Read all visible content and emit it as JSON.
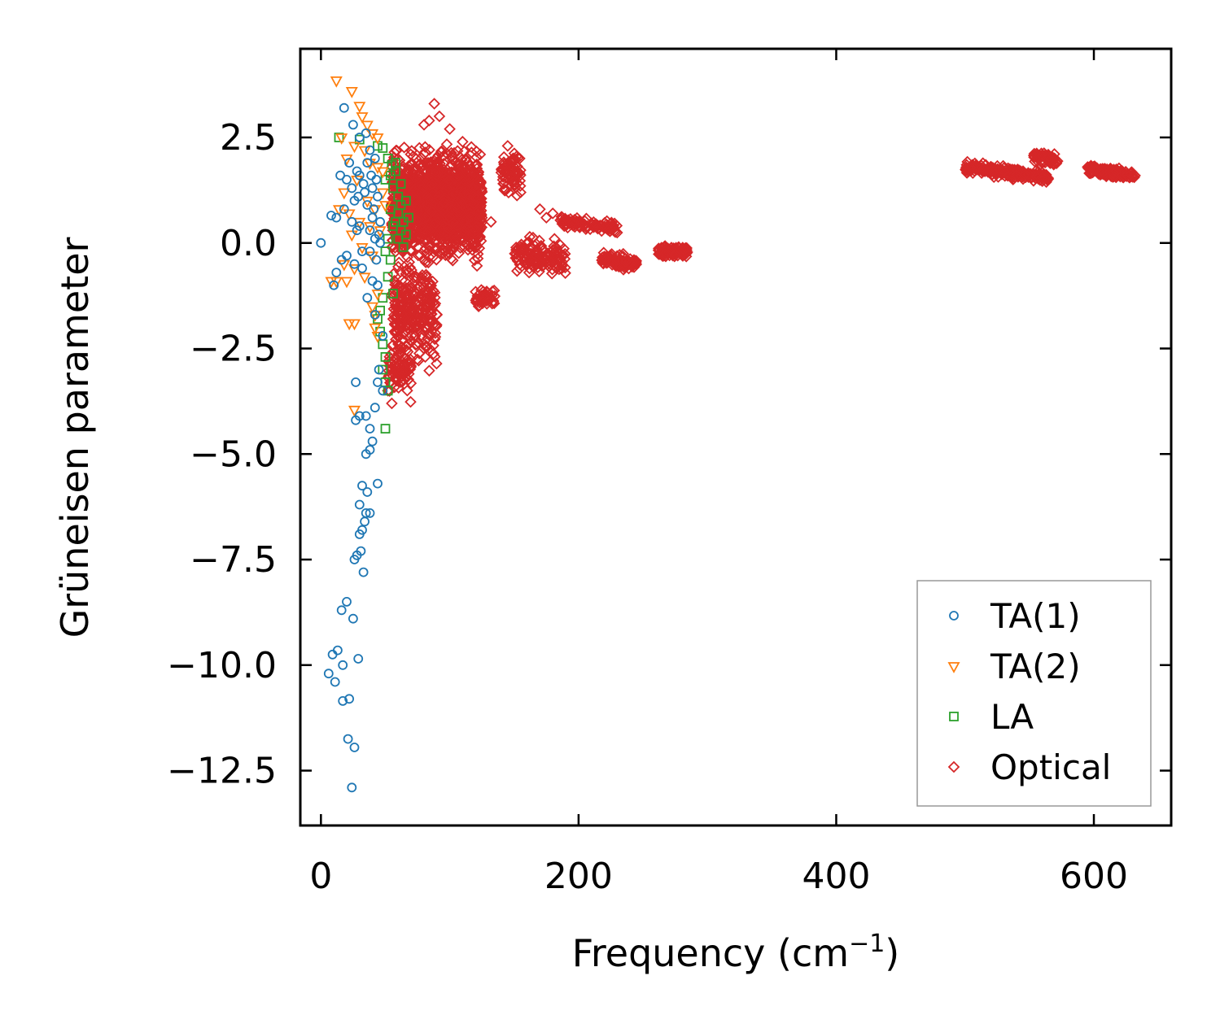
{
  "chart_data": {
    "type": "scatter",
    "xlabel": "Frequency (cm",
    "xlabel_superscript": "−1",
    "xlabel_suffix": ")",
    "ylabel": "Grüneisen parameter",
    "xlim": [
      -16,
      660
    ],
    "ylim": [
      -13.8,
      4.6
    ],
    "xticks": [
      0,
      200,
      400,
      600
    ],
    "xtick_labels": [
      "0",
      "200",
      "400",
      "600"
    ],
    "yticks": [
      2.5,
      0.0,
      -2.5,
      -5.0,
      -7.5,
      -10.0,
      -12.5
    ],
    "ytick_labels": [
      "2.5",
      "0.0",
      "−2.5",
      "−5.0",
      "−7.5",
      "−10.0",
      "−12.5"
    ],
    "legend_position": "lower-right",
    "grid": false,
    "colors": {
      "ta1": "#1f77b4",
      "ta2": "#ff7f0e",
      "la": "#2ca02c",
      "optical": "#d62728"
    },
    "series": [
      {
        "name": "TA(1)",
        "marker": "circle",
        "color": "#1f77b4",
        "points": [
          [
            18,
            3.2
          ],
          [
            25,
            2.8
          ],
          [
            30,
            2.5
          ],
          [
            35,
            2.6
          ],
          [
            38,
            2.2
          ],
          [
            42,
            2.0
          ],
          [
            22,
            1.9
          ],
          [
            28,
            1.7
          ],
          [
            15,
            1.6
          ],
          [
            20,
            1.5
          ],
          [
            33,
            1.4
          ],
          [
            40,
            1.3
          ],
          [
            44,
            1.1
          ],
          [
            26,
            1.0
          ],
          [
            36,
            0.9
          ],
          [
            18,
            0.8
          ],
          [
            8,
            0.65
          ],
          [
            12,
            0.6
          ],
          [
            24,
            0.5
          ],
          [
            30,
            0.4
          ],
          [
            38,
            0.3
          ],
          [
            42,
            0.1
          ],
          [
            46,
            0.0
          ],
          [
            20,
            -0.3
          ],
          [
            16,
            -0.4
          ],
          [
            26,
            -0.5
          ],
          [
            12,
            -0.7
          ],
          [
            32,
            -0.6
          ],
          [
            40,
            -0.9
          ],
          [
            44,
            -1.0
          ],
          [
            10,
            -1.0
          ],
          [
            36,
            -1.3
          ],
          [
            42,
            -1.7
          ],
          [
            48,
            -2.2
          ],
          [
            45,
            -3.0
          ],
          [
            44,
            -3.3
          ],
          [
            27,
            -3.3
          ],
          [
            48,
            -3.5
          ],
          [
            42,
            -3.9
          ],
          [
            30,
            -4.1
          ],
          [
            35,
            -4.1
          ],
          [
            27,
            -4.2
          ],
          [
            38,
            -4.4
          ],
          [
            40,
            -4.7
          ],
          [
            38,
            -4.9
          ],
          [
            35,
            -5.0
          ],
          [
            44,
            -5.7
          ],
          [
            32,
            -5.75
          ],
          [
            36,
            -5.9
          ],
          [
            30,
            -6.2
          ],
          [
            35,
            -6.4
          ],
          [
            38,
            -6.4
          ],
          [
            34,
            -6.6
          ],
          [
            32,
            -6.8
          ],
          [
            30,
            -6.9
          ],
          [
            31,
            -7.3
          ],
          [
            28,
            -7.4
          ],
          [
            26,
            -7.5
          ],
          [
            33,
            -7.8
          ],
          [
            20,
            -8.5
          ],
          [
            16,
            -8.7
          ],
          [
            25,
            -8.9
          ],
          [
            13,
            -9.65
          ],
          [
            9,
            -9.75
          ],
          [
            29,
            -9.85
          ],
          [
            17,
            -10.0
          ],
          [
            6,
            -10.2
          ],
          [
            11,
            -10.4
          ],
          [
            22,
            -10.8
          ],
          [
            17,
            -10.85
          ],
          [
            21,
            -11.75
          ],
          [
            26,
            -11.95
          ],
          [
            24,
            -12.9
          ],
          [
            0,
            0.0
          ],
          [
            30,
            1.6
          ],
          [
            34,
            1.2
          ],
          [
            28,
            0.3
          ],
          [
            40,
            0.6
          ],
          [
            45,
            0.2
          ],
          [
            32,
            -0.2
          ],
          [
            38,
            -0.2
          ],
          [
            43,
            -0.4
          ],
          [
            29,
            1.1
          ],
          [
            36,
            1.9
          ],
          [
            41,
            0.8
          ],
          [
            46,
            0.5
          ],
          [
            39,
            1.6
          ],
          [
            43,
            1.5
          ],
          [
            24,
            1.3
          ]
        ]
      },
      {
        "name": "TA(2)",
        "marker": "triangle",
        "color": "#ff7f0e",
        "points": [
          [
            12,
            3.85
          ],
          [
            24,
            3.6
          ],
          [
            30,
            3.25
          ],
          [
            32,
            3.0
          ],
          [
            36,
            2.8
          ],
          [
            40,
            2.6
          ],
          [
            44,
            2.5
          ],
          [
            16,
            2.5
          ],
          [
            26,
            2.3
          ],
          [
            34,
            2.2
          ],
          [
            20,
            2.0
          ],
          [
            38,
            1.9
          ],
          [
            44,
            1.8
          ],
          [
            48,
            1.7
          ],
          [
            28,
            1.5
          ],
          [
            18,
            1.2
          ],
          [
            36,
            1.0
          ],
          [
            42,
            0.8
          ],
          [
            14,
            0.8
          ],
          [
            22,
            0.7
          ],
          [
            30,
            0.5
          ],
          [
            38,
            0.4
          ],
          [
            46,
            0.3
          ],
          [
            24,
            0.2
          ],
          [
            32,
            -0.1
          ],
          [
            40,
            -0.3
          ],
          [
            18,
            -0.5
          ],
          [
            26,
            -0.6
          ],
          [
            34,
            -0.8
          ],
          [
            8,
            -0.9
          ],
          [
            12,
            -0.9
          ],
          [
            20,
            -0.9
          ],
          [
            44,
            -1.2
          ],
          [
            40,
            -1.5
          ],
          [
            42,
            -1.7
          ],
          [
            22,
            -1.9
          ],
          [
            26,
            -1.9
          ],
          [
            42,
            -2.0
          ],
          [
            44,
            -2.2
          ],
          [
            26,
            -3.95
          ],
          [
            48,
            1.2
          ],
          [
            50,
            0.9
          ]
        ]
      },
      {
        "name": "LA",
        "marker": "square",
        "color": "#2ca02c",
        "points": [
          [
            14,
            2.5
          ],
          [
            30,
            2.45
          ],
          [
            48,
            2.25
          ],
          [
            52,
            2.0
          ],
          [
            55,
            1.85
          ],
          [
            58,
            1.7
          ],
          [
            50,
            1.5
          ],
          [
            56,
            1.3
          ],
          [
            60,
            1.1
          ],
          [
            62,
            0.9
          ],
          [
            54,
            0.8
          ],
          [
            58,
            0.5
          ],
          [
            62,
            0.3
          ],
          [
            66,
            0.2
          ],
          [
            64,
            0.5
          ],
          [
            60,
            0.7
          ],
          [
            56,
            0.4
          ],
          [
            52,
            0.1
          ],
          [
            50,
            -0.2
          ],
          [
            54,
            -0.4
          ],
          [
            52,
            -0.8
          ],
          [
            56,
            -1.2
          ],
          [
            48,
            -1.3
          ],
          [
            46,
            -1.6
          ],
          [
            44,
            -1.8
          ],
          [
            46,
            -2.1
          ],
          [
            48,
            -2.4
          ],
          [
            50,
            -2.7
          ],
          [
            48,
            -3.0
          ],
          [
            50,
            -3.3
          ],
          [
            52,
            -3.5
          ],
          [
            50,
            -4.4
          ],
          [
            44,
            2.3
          ],
          [
            62,
            1.4
          ],
          [
            66,
            1.0
          ],
          [
            68,
            0.6
          ],
          [
            58,
            1.9
          ],
          [
            54,
            1.6
          ],
          [
            60,
            0.1
          ],
          [
            64,
            -0.1
          ]
        ]
      },
      {
        "name": "Optical",
        "marker": "diamond",
        "color": "#d62728",
        "clusters": [
          {
            "n": 1500,
            "freq_range": [
              55,
              125
            ],
            "gamma_center": 0.9,
            "gamma_spread": 1.3
          },
          {
            "n": 260,
            "freq_range": [
              55,
              90
            ],
            "gamma_center": -1.6,
            "gamma_spread": 1.4
          },
          {
            "n": 80,
            "freq_range": [
              52,
              70
            ],
            "gamma_center": -3.0,
            "gamma_spread": 0.7
          },
          {
            "n": 70,
            "freq_range": [
              140,
              155
            ],
            "gamma_center": 1.6,
            "gamma_spread": 0.6
          },
          {
            "n": 40,
            "freq_range": [
              120,
              135
            ],
            "gamma_center": -1.3,
            "gamma_spread": 0.25
          },
          {
            "n": 130,
            "freq_range": [
              150,
              190
            ],
            "gamma_center": -0.3,
            "gamma_spread": 0.45
          },
          {
            "n": 100,
            "freq_range": [
              185,
              230
            ],
            "gamma_center": 0.5,
            "gamma_spread": 0.15
          },
          {
            "n": 90,
            "freq_range": [
              218,
              245
            ],
            "gamma_center": -0.4,
            "gamma_spread": 0.18
          },
          {
            "n": 90,
            "freq_range": [
              262,
              285
            ],
            "gamma_center": -0.2,
            "gamma_spread": 0.15
          },
          {
            "n": 200,
            "freq_range": [
              500,
              565
            ],
            "gamma_center": 1.8,
            "gamma_spread": 0.15
          },
          {
            "n": 60,
            "freq_range": [
              553,
              572
            ],
            "gamma_center": 2.05,
            "gamma_spread": 0.15
          },
          {
            "n": 160,
            "freq_range": [
              595,
              632
            ],
            "gamma_center": 1.75,
            "gamma_spread": 0.12
          }
        ],
        "points": [
          [
            88,
            3.3
          ],
          [
            84,
            2.9
          ],
          [
            80,
            2.8
          ],
          [
            92,
            3.0
          ],
          [
            100,
            2.7
          ],
          [
            110,
            2.4
          ],
          [
            170,
            0.8
          ],
          [
            175,
            0.6
          ],
          [
            180,
            0.7
          ],
          [
            160,
            0.0
          ],
          [
            145,
            2.3
          ],
          [
            150,
            1.8
          ],
          [
            155,
            1.2
          ],
          [
            125,
            0.6
          ],
          [
            132,
            0.5
          ],
          [
            52,
            -3.5
          ],
          [
            55,
            -3.8
          ],
          [
            58,
            -3.2
          ],
          [
            530,
            1.7
          ],
          [
            540,
            1.6
          ],
          [
            560,
            1.55
          ]
        ]
      }
    ]
  }
}
